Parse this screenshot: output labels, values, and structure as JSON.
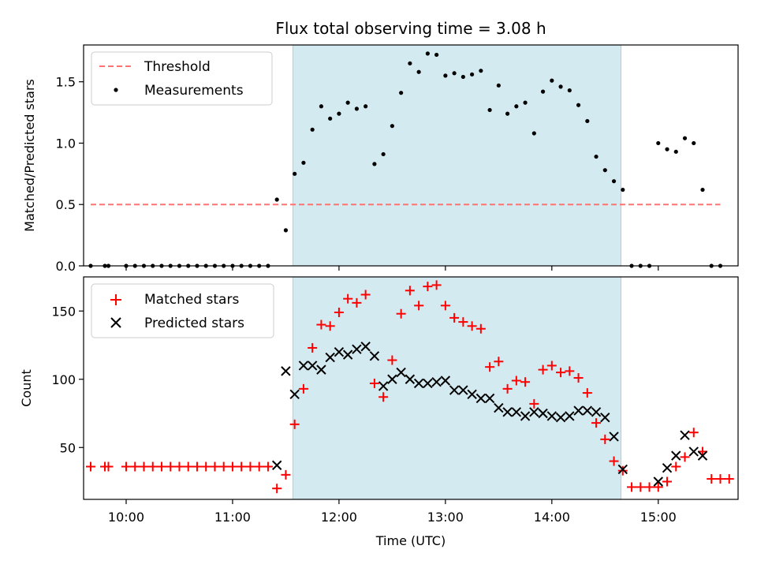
{
  "chart_data": [
    {
      "type": "scatter",
      "title": "Flux total observing time = 3.08 h",
      "xlabel": "",
      "ylabel": "Matched/Predicted stars",
      "ylim": [
        0,
        1.8
      ],
      "yticks": [
        "0.0",
        "0.5",
        "1.0",
        "1.5"
      ],
      "xlim": [
        "09:36",
        "15:45"
      ],
      "shaded_region": {
        "start": "11:34",
        "end": "14:39",
        "color": "#d3eaf1"
      },
      "legend_position": "upper-left",
      "threshold": {
        "name": "Threshold",
        "value": 0.5,
        "x_start": "09:40",
        "x_end": "15:35",
        "color": "#ff7373"
      },
      "series": [
        {
          "name": "Measurements",
          "color": "#000000",
          "points": [
            [
              "09:40",
              0.0
            ],
            [
              "09:48",
              0.0
            ],
            [
              "09:50",
              0.0
            ],
            [
              "10:00",
              0.0
            ],
            [
              "10:05",
              0.0
            ],
            [
              "10:10",
              0.0
            ],
            [
              "10:15",
              0.0
            ],
            [
              "10:20",
              0.0
            ],
            [
              "10:25",
              0.0
            ],
            [
              "10:30",
              0.0
            ],
            [
              "10:35",
              0.0
            ],
            [
              "10:40",
              0.0
            ],
            [
              "10:45",
              0.0
            ],
            [
              "10:50",
              0.0
            ],
            [
              "10:55",
              0.0
            ],
            [
              "11:00",
              0.0
            ],
            [
              "11:05",
              0.0
            ],
            [
              "11:10",
              0.0
            ],
            [
              "11:15",
              0.0
            ],
            [
              "11:20",
              0.0
            ],
            [
              "11:25",
              0.54
            ],
            [
              "11:30",
              0.29
            ],
            [
              "11:35",
              0.75
            ],
            [
              "11:40",
              0.84
            ],
            [
              "11:45",
              1.11
            ],
            [
              "11:50",
              1.3
            ],
            [
              "11:55",
              1.2
            ],
            [
              "12:00",
              1.24
            ],
            [
              "12:05",
              1.33
            ],
            [
              "12:10",
              1.28
            ],
            [
              "12:15",
              1.3
            ],
            [
              "12:20",
              0.83
            ],
            [
              "12:25",
              0.91
            ],
            [
              "12:30",
              1.14
            ],
            [
              "12:35",
              1.41
            ],
            [
              "12:40",
              1.65
            ],
            [
              "12:45",
              1.58
            ],
            [
              "12:50",
              1.73
            ],
            [
              "12:55",
              1.72
            ],
            [
              "13:00",
              1.55
            ],
            [
              "13:05",
              1.57
            ],
            [
              "13:10",
              1.54
            ],
            [
              "13:15",
              1.56
            ],
            [
              "13:20",
              1.59
            ],
            [
              "13:25",
              1.27
            ],
            [
              "13:30",
              1.47
            ],
            [
              "13:35",
              1.24
            ],
            [
              "13:40",
              1.3
            ],
            [
              "13:45",
              1.33
            ],
            [
              "13:50",
              1.08
            ],
            [
              "13:55",
              1.42
            ],
            [
              "14:00",
              1.51
            ],
            [
              "14:05",
              1.46
            ],
            [
              "14:10",
              1.43
            ],
            [
              "14:15",
              1.31
            ],
            [
              "14:20",
              1.18
            ],
            [
              "14:25",
              0.89
            ],
            [
              "14:30",
              0.78
            ],
            [
              "14:35",
              0.69
            ],
            [
              "14:40",
              0.62
            ],
            [
              "14:45",
              0.0
            ],
            [
              "14:50",
              0.0
            ],
            [
              "14:55",
              0.0
            ],
            [
              "15:00",
              1.0
            ],
            [
              "15:05",
              0.95
            ],
            [
              "15:10",
              0.93
            ],
            [
              "15:15",
              1.04
            ],
            [
              "15:20",
              1.0
            ],
            [
              "15:25",
              0.62
            ],
            [
              "15:30",
              0.0
            ],
            [
              "15:35",
              0.0
            ]
          ]
        }
      ]
    },
    {
      "type": "scatter",
      "title": "",
      "xlabel": "Time (UTC)",
      "ylabel": "Count",
      "ylim": [
        12,
        175
      ],
      "yticks": [
        "50",
        "100",
        "150"
      ],
      "xticks": [
        "10:00",
        "11:00",
        "12:00",
        "13:00",
        "14:00",
        "15:00"
      ],
      "xlim": [
        "09:36",
        "15:45"
      ],
      "shaded_region": {
        "start": "11:34",
        "end": "14:39",
        "color": "#d3eaf1"
      },
      "legend_position": "upper-left",
      "series": [
        {
          "name": "Matched stars",
          "marker": "plus",
          "color": "#ff0000",
          "points": [
            [
              "09:40",
              36
            ],
            [
              "09:48",
              36
            ],
            [
              "09:50",
              36
            ],
            [
              "10:00",
              36
            ],
            [
              "10:05",
              36
            ],
            [
              "10:10",
              36
            ],
            [
              "10:15",
              36
            ],
            [
              "10:20",
              36
            ],
            [
              "10:25",
              36
            ],
            [
              "10:30",
              36
            ],
            [
              "10:35",
              36
            ],
            [
              "10:40",
              36
            ],
            [
              "10:45",
              36
            ],
            [
              "10:50",
              36
            ],
            [
              "10:55",
              36
            ],
            [
              "11:00",
              36
            ],
            [
              "11:05",
              36
            ],
            [
              "11:10",
              36
            ],
            [
              "11:15",
              36
            ],
            [
              "11:20",
              36
            ],
            [
              "11:25",
              20
            ],
            [
              "11:30",
              30
            ],
            [
              "11:35",
              67
            ],
            [
              "11:40",
              93
            ],
            [
              "11:45",
              123
            ],
            [
              "11:50",
              140
            ],
            [
              "11:55",
              139
            ],
            [
              "12:00",
              149
            ],
            [
              "12:05",
              159
            ],
            [
              "12:10",
              156
            ],
            [
              "12:15",
              162
            ],
            [
              "12:20",
              97
            ],
            [
              "12:25",
              87
            ],
            [
              "12:30",
              114
            ],
            [
              "12:35",
              148
            ],
            [
              "12:40",
              165
            ],
            [
              "12:45",
              154
            ],
            [
              "12:50",
              168
            ],
            [
              "12:55",
              169
            ],
            [
              "13:00",
              154
            ],
            [
              "13:05",
              145
            ],
            [
              "13:10",
              142
            ],
            [
              "13:15",
              139
            ],
            [
              "13:20",
              137
            ],
            [
              "13:25",
              109
            ],
            [
              "13:30",
              113
            ],
            [
              "13:35",
              93
            ],
            [
              "13:40",
              99
            ],
            [
              "13:45",
              98
            ],
            [
              "13:50",
              82
            ],
            [
              "13:55",
              107
            ],
            [
              "14:00",
              110
            ],
            [
              "14:05",
              105
            ],
            [
              "14:10",
              106
            ],
            [
              "14:15",
              101
            ],
            [
              "14:20",
              90
            ],
            [
              "14:25",
              68
            ],
            [
              "14:30",
              56
            ],
            [
              "14:35",
              40
            ],
            [
              "14:40",
              33
            ],
            [
              "14:45",
              21
            ],
            [
              "14:50",
              21
            ],
            [
              "14:55",
              21
            ],
            [
              "15:00",
              21
            ],
            [
              "15:05",
              25
            ],
            [
              "15:10",
              36
            ],
            [
              "15:15",
              43
            ],
            [
              "15:20",
              61
            ],
            [
              "15:25",
              47
            ],
            [
              "15:30",
              27
            ],
            [
              "15:35",
              27
            ],
            [
              "15:40",
              27
            ]
          ]
        },
        {
          "name": "Predicted stars",
          "marker": "x",
          "color": "#000000",
          "points": [
            [
              "11:25",
              37
            ],
            [
              "11:30",
              106
            ],
            [
              "11:35",
              89
            ],
            [
              "11:40",
              110
            ],
            [
              "11:45",
              110
            ],
            [
              "11:50",
              107
            ],
            [
              "11:55",
              116
            ],
            [
              "12:00",
              120
            ],
            [
              "12:05",
              118
            ],
            [
              "12:10",
              122
            ],
            [
              "12:15",
              124
            ],
            [
              "12:20",
              117
            ],
            [
              "12:25",
              95
            ],
            [
              "12:30",
              100
            ],
            [
              "12:35",
              105
            ],
            [
              "12:40",
              100
            ],
            [
              "12:45",
              97
            ],
            [
              "12:50",
              97
            ],
            [
              "12:55",
              98
            ],
            [
              "13:00",
              99
            ],
            [
              "13:05",
              92
            ],
            [
              "13:10",
              92
            ],
            [
              "13:15",
              89
            ],
            [
              "13:20",
              86
            ],
            [
              "13:25",
              86
            ],
            [
              "13:30",
              79
            ],
            [
              "13:35",
              76
            ],
            [
              "13:40",
              76
            ],
            [
              "13:45",
              73
            ],
            [
              "13:50",
              76
            ],
            [
              "13:55",
              75
            ],
            [
              "14:00",
              73
            ],
            [
              "14:05",
              72
            ],
            [
              "14:10",
              73
            ],
            [
              "14:15",
              77
            ],
            [
              "14:20",
              77
            ],
            [
              "14:25",
              76
            ],
            [
              "14:30",
              72
            ],
            [
              "14:35",
              58
            ],
            [
              "14:40",
              34
            ],
            [
              "15:00",
              25
            ],
            [
              "15:05",
              35
            ],
            [
              "15:10",
              44
            ],
            [
              "15:15",
              59
            ],
            [
              "15:20",
              47
            ],
            [
              "15:25",
              44
            ]
          ]
        }
      ]
    }
  ]
}
